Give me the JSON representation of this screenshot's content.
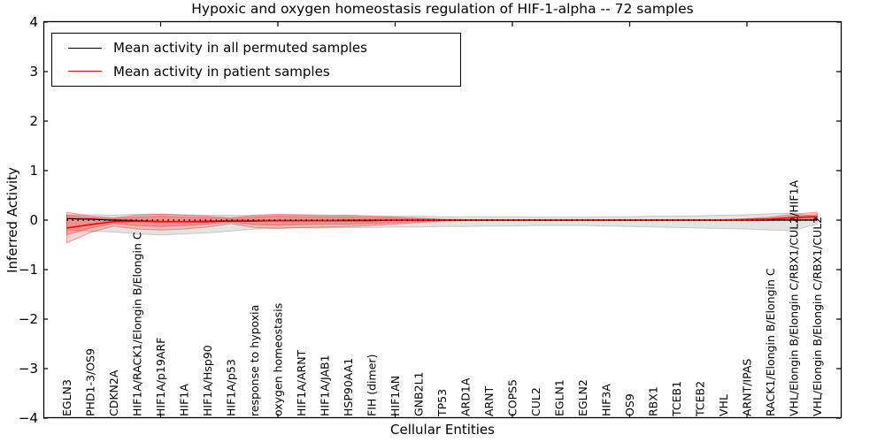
{
  "chart_data": {
    "type": "line",
    "title": "Hypoxic and oxygen homeostasis regulation of HIF-1-alpha -- 72 samples",
    "xlabel": "Cellular Entities",
    "ylabel": "Inferred Activity",
    "ylim": [
      -4,
      4
    ],
    "yticks": [
      4,
      3,
      2,
      1,
      0,
      -1,
      -2,
      -3,
      -4
    ],
    "x_axis": {
      "range": [
        0,
        34
      ],
      "tick_positions": [
        5,
        10,
        15,
        20,
        25,
        30
      ]
    },
    "grid": false,
    "legend_position": "upper left",
    "categories": [
      "EGLN3",
      "PHD1-3/OS9",
      "CDKN2A",
      "HIF1A/RACK1/Elongin B/Elongin C",
      "HIF1A/p19ARF",
      "HIF1A",
      "HIF1A/Hsp90",
      "HIF1A/p53",
      "response to hypoxia",
      "oxygen homeostasis",
      "HIF1A/ARNT",
      "HIF1A/JAB1",
      "HSP90AA1",
      "FIH (dimer)",
      "HIF1AN",
      "GNB2L1",
      "TP53",
      "ARD1A",
      "ARNT",
      "COPS5",
      "CUL2",
      "EGLN1",
      "EGLN2",
      "HIF3A",
      "OS9",
      "RBX1",
      "TCEB1",
      "TCEB2",
      "VHL",
      "ARNT/IPAS",
      "RACK1/Elongin B/Elongin C",
      "VHL/Elongin B/Elongin C/RBX1/CUL2/HIF1A",
      "VHL/Elongin B/Elongin C/RBX1/CUL2"
    ],
    "series": [
      {
        "name": "Mean activity in all permuted samples",
        "color": "#000000",
        "values": [
          0.03,
          0.02,
          0.0,
          -0.01,
          -0.03,
          -0.03,
          -0.03,
          -0.02,
          -0.02,
          -0.01,
          -0.01,
          -0.01,
          -0.01,
          -0.01,
          0.0,
          0.0,
          0.0,
          0.0,
          0.0,
          0.0,
          0.0,
          0.0,
          0.0,
          0.0,
          0.0,
          0.0,
          0.0,
          0.0,
          0.0,
          0.0,
          0.0,
          0.0,
          0.0
        ]
      },
      {
        "name": "Mean activity in patient samples",
        "color": "#ff0000",
        "values": [
          -0.16,
          -0.09,
          -0.03,
          -0.02,
          -0.03,
          -0.03,
          -0.02,
          -0.01,
          -0.01,
          -0.01,
          -0.01,
          -0.01,
          0.0,
          0.0,
          0.0,
          0.0,
          0.0,
          0.0,
          0.0,
          0.0,
          0.0,
          0.0,
          0.0,
          0.0,
          0.0,
          0.0,
          0.0,
          0.0,
          0.0,
          0.01,
          0.02,
          0.05,
          0.07
        ]
      }
    ],
    "bands": [
      {
        "name": "permuted-spread-band",
        "color": "#000000",
        "fill_opacity": 0.11,
        "edge_opacity": 0.16,
        "upper": [
          0.1,
          0.11,
          0.1,
          0.12,
          0.12,
          0.11,
          0.1,
          0.1,
          0.09,
          0.1,
          0.1,
          0.09,
          0.09,
          0.08,
          0.08,
          0.08,
          0.07,
          0.07,
          0.07,
          0.07,
          0.06,
          0.06,
          0.06,
          0.07,
          0.07,
          0.08,
          0.08,
          0.09,
          0.1,
          0.11,
          0.13,
          0.14,
          0.06
        ],
        "lower": [
          -0.2,
          -0.22,
          -0.24,
          -0.28,
          -0.3,
          -0.28,
          -0.26,
          -0.22,
          -0.18,
          -0.17,
          -0.16,
          -0.16,
          -0.15,
          -0.15,
          -0.14,
          -0.14,
          -0.13,
          -0.13,
          -0.12,
          -0.12,
          -0.11,
          -0.11,
          -0.11,
          -0.12,
          -0.13,
          -0.14,
          -0.15,
          -0.16,
          -0.17,
          -0.18,
          -0.2,
          -0.21,
          -0.08
        ]
      },
      {
        "name": "patient-spread-band-outer",
        "color": "#ff0000",
        "fill_opacity": 0.18,
        "edge_opacity": 0.35,
        "upper": [
          0.16,
          0.08,
          0.045,
          0.1,
          0.12,
          0.1,
          0.08,
          0.05,
          0.1,
          0.12,
          0.11,
          0.1,
          0.1,
          0.08,
          0.06,
          0.04,
          0.02,
          0.01,
          0.01,
          0.01,
          0.01,
          0.01,
          0.01,
          0.01,
          0.01,
          0.01,
          0.01,
          0.01,
          0.01,
          0.03,
          0.06,
          0.12,
          0.16
        ],
        "lower": [
          -0.46,
          -0.25,
          -0.12,
          -0.18,
          -0.2,
          -0.18,
          -0.14,
          -0.07,
          -0.15,
          -0.16,
          -0.15,
          -0.14,
          -0.13,
          -0.11,
          -0.08,
          -0.05,
          -0.02,
          -0.01,
          -0.01,
          -0.01,
          -0.01,
          -0.01,
          -0.01,
          -0.01,
          -0.01,
          -0.01,
          -0.01,
          -0.01,
          -0.01,
          -0.01,
          0.0,
          0.0,
          0.01
        ]
      },
      {
        "name": "patient-spread-band-inner",
        "color": "#ff0000",
        "fill_opacity": 0.22,
        "edge_opacity": 0.3,
        "upper": [
          0.1,
          0.05,
          0.03,
          0.06,
          0.08,
          0.06,
          0.05,
          0.03,
          0.06,
          0.08,
          0.07,
          0.06,
          0.06,
          0.05,
          0.04,
          0.03,
          0.01,
          0.01,
          0.01,
          0.01,
          0.01,
          0.01,
          0.01,
          0.01,
          0.01,
          0.01,
          0.01,
          0.01,
          0.01,
          0.02,
          0.04,
          0.08,
          0.11
        ],
        "lower": [
          -0.3,
          -0.16,
          -0.07,
          -0.11,
          -0.13,
          -0.11,
          -0.08,
          -0.04,
          -0.09,
          -0.1,
          -0.09,
          -0.08,
          -0.08,
          -0.07,
          -0.05,
          -0.03,
          -0.01,
          -0.01,
          -0.01,
          -0.01,
          -0.01,
          -0.01,
          -0.01,
          -0.01,
          -0.01,
          -0.01,
          -0.01,
          -0.01,
          -0.01,
          0.0,
          0.0,
          0.01,
          0.02
        ]
      }
    ],
    "zero_line": {
      "value": 0,
      "style": "dotted",
      "color": "#000000"
    }
  }
}
